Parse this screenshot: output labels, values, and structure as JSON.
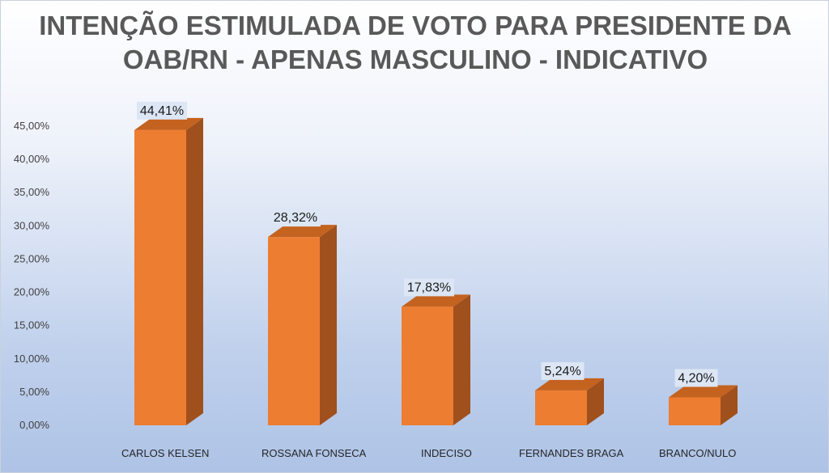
{
  "chart_data": {
    "type": "bar",
    "title_lines": [
      "INTENÇÃO ESTIMULADA DE VOTO PARA PRESIDENTE DA",
      "OAB/RN - APENAS MASCULINO - INDICATIVO"
    ],
    "categories": [
      "CARLOS KELSEN",
      "ROSSANA FONSECA",
      "INDECISO",
      "FERNANDES BRAGA",
      "BRANCO/NULO"
    ],
    "values": [
      44.41,
      28.32,
      17.83,
      5.24,
      4.2
    ],
    "data_labels": [
      "44,41%",
      "28,32%",
      "17,83%",
      "5,24%",
      "4,20%"
    ],
    "ylim": [
      0,
      45
    ],
    "y_ticks": [
      0,
      5,
      10,
      15,
      20,
      25,
      30,
      35,
      40,
      45
    ],
    "y_tick_labels": [
      "0,00%",
      "5,00%",
      "10,00%",
      "15,00%",
      "20,00%",
      "25,00%",
      "30,00%",
      "35,00%",
      "40,00%",
      "45,00%"
    ],
    "grid": false,
    "legend": "none",
    "bar_style": "3d",
    "colors": {
      "bar_front": "#ed7d31",
      "bar_side": "#a0501c",
      "bar_top": "#c4621f",
      "label_box": "#dce6f4"
    }
  }
}
